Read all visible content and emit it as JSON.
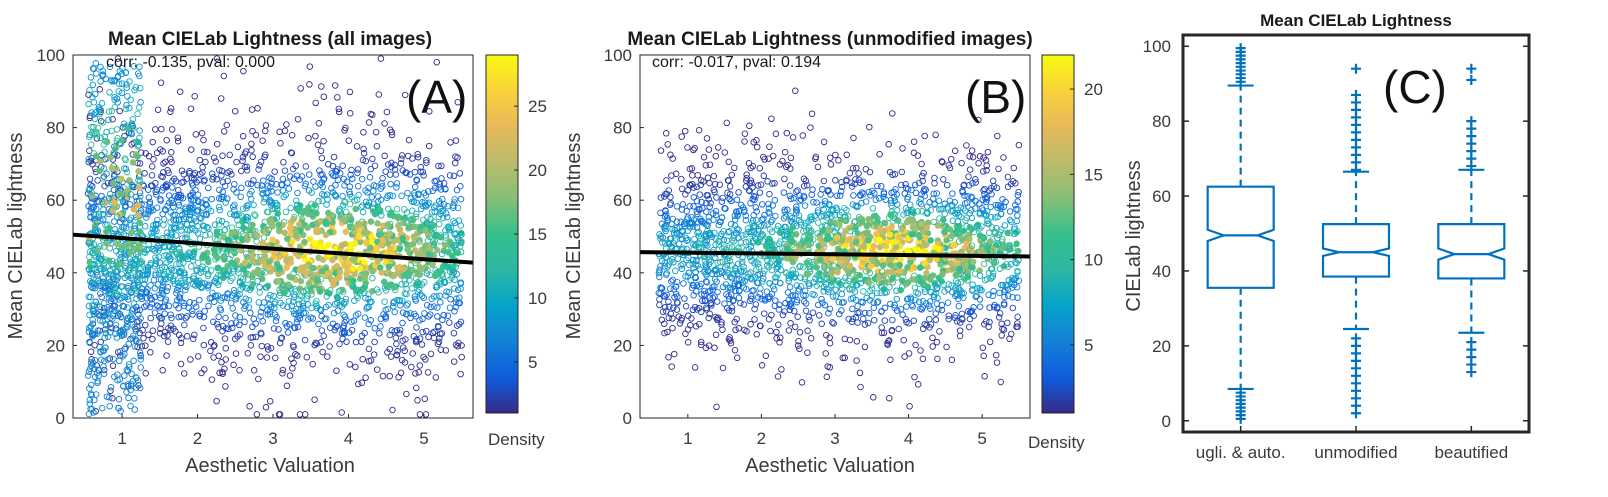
{
  "chart_data": [
    {
      "type": "scatter",
      "panel_label": "(A)",
      "title": "Mean CIELab Lightness (all images)",
      "stats": "corr: -0.135, pval: 0.000",
      "xlabel": "Aesthetic Valuation",
      "ylabel": "Mean CIELab lightness",
      "xlim": [
        0.35,
        5.65
      ],
      "ylim": [
        0,
        100
      ],
      "xticks": [
        1,
        2,
        3,
        4,
        5
      ],
      "yticks": [
        0,
        20,
        40,
        60,
        80,
        100
      ],
      "regression": {
        "x": [
          0.35,
          5.65
        ],
        "y": [
          50.5,
          42.8
        ]
      },
      "colorbar": {
        "label": "Density",
        "range": [
          1,
          29
        ],
        "ticks": [
          5,
          10,
          15,
          20,
          25
        ]
      },
      "cloud": {
        "x_range": [
          0.55,
          5.5
        ],
        "y_center": 46,
        "y_spread": 16,
        "low_valuation_band": [
          0.55,
          1.25
        ]
      }
    },
    {
      "type": "scatter",
      "panel_label": "(B)",
      "title": "Mean CIELab Lightness (unmodified images)",
      "stats": "corr: -0.017, pval: 0.194",
      "xlabel": "Aesthetic Valuation",
      "ylabel": "Mean CIELab lightness",
      "xlim": [
        0.35,
        5.65
      ],
      "ylim": [
        0,
        100
      ],
      "xticks": [
        1,
        2,
        3,
        4,
        5
      ],
      "yticks": [
        0,
        20,
        40,
        60,
        80,
        100
      ],
      "regression": {
        "x": [
          0.35,
          5.65
        ],
        "y": [
          45.7,
          44.5
        ]
      },
      "colorbar": {
        "label": "Density",
        "range": [
          1,
          22
        ],
        "ticks": [
          5,
          10,
          15,
          20
        ]
      },
      "cloud": {
        "x_range": [
          0.6,
          5.5
        ],
        "y_center": 46,
        "y_spread": 13
      }
    },
    {
      "type": "box",
      "panel_label": "(C)",
      "title": "Mean CIELab Lightness",
      "ylabel": "CIELab lightness",
      "ylim": [
        -3,
        103
      ],
      "yticks": [
        0,
        20,
        40,
        60,
        80,
        100
      ],
      "categories": [
        "ugli. & auto.",
        "unmodified",
        "beautified"
      ],
      "boxes": [
        {
          "q1": 35.5,
          "median": 49.5,
          "q3": 62.5,
          "notch": [
            48.0,
            51.0
          ],
          "whisker_low": 8.5,
          "whisker_high": 89.5,
          "outliers": [
            0.5,
            1.5,
            2.5,
            3.5,
            4.5,
            5.5,
            6.5,
            7.5,
            90.5,
            91.5,
            92.5,
            93.5,
            94.5,
            95.5,
            96.5,
            97.5,
            98.5,
            99.5
          ]
        },
        {
          "q1": 38.5,
          "median": 45.0,
          "q3": 52.5,
          "notch": [
            44.0,
            46.0
          ],
          "whisker_low": 24.5,
          "whisker_high": 66.5,
          "outliers": [
            2,
            4,
            6,
            8,
            10,
            12,
            14,
            16,
            18,
            20,
            22,
            67,
            69,
            71,
            73,
            75,
            77,
            79,
            81,
            83,
            85,
            87,
            94
          ]
        },
        {
          "q1": 38.0,
          "median": 44.5,
          "q3": 52.5,
          "notch": [
            43.0,
            46.0
          ],
          "whisker_low": 23.5,
          "whisker_high": 67.0,
          "outliers": [
            13,
            15,
            17,
            19,
            21,
            68,
            70,
            72,
            74,
            76,
            78,
            80,
            91,
            94
          ]
        }
      ],
      "color": "#0072BD"
    }
  ]
}
